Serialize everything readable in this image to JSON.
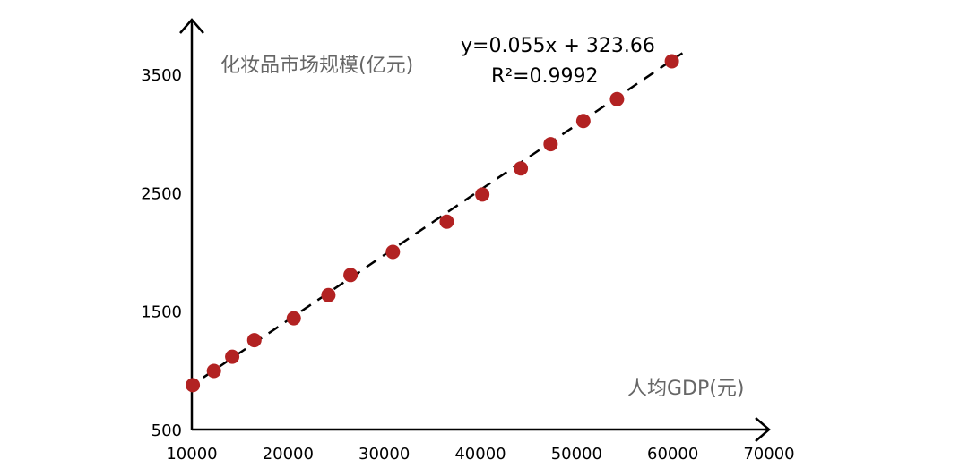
{
  "chart_data": {
    "type": "scatter",
    "ylabel": "化妆品市场规模(亿元)",
    "xlabel": "人均GDP(元)",
    "x_ticks": [
      "10000",
      "20000",
      "30000",
      "40000",
      "50000",
      "60000",
      "70000"
    ],
    "y_ticks": [
      "500",
      "1500",
      "2500",
      "3500"
    ],
    "xlim": [
      10000,
      70000
    ],
    "ylim": [
      500,
      3800
    ],
    "grid": false,
    "series": [
      {
        "points": [
          [
            10100,
            875
          ],
          [
            12300,
            995
          ],
          [
            14200,
            1115
          ],
          [
            16500,
            1255
          ],
          [
            20600,
            1440
          ],
          [
            24200,
            1635
          ],
          [
            26500,
            1805
          ],
          [
            30900,
            2000
          ],
          [
            36500,
            2255
          ],
          [
            40200,
            2485
          ],
          [
            44200,
            2705
          ],
          [
            47300,
            2910
          ],
          [
            50700,
            3105
          ],
          [
            54200,
            3290
          ],
          [
            59900,
            3610
          ]
        ],
        "color": "#b22222"
      }
    ],
    "trendline": {
      "slope": 0.055,
      "intercept": 323.66,
      "equation": "y=0.055x + 323.66",
      "r2": "R²=0.9992",
      "style": "dashed",
      "color": "#000000"
    }
  }
}
